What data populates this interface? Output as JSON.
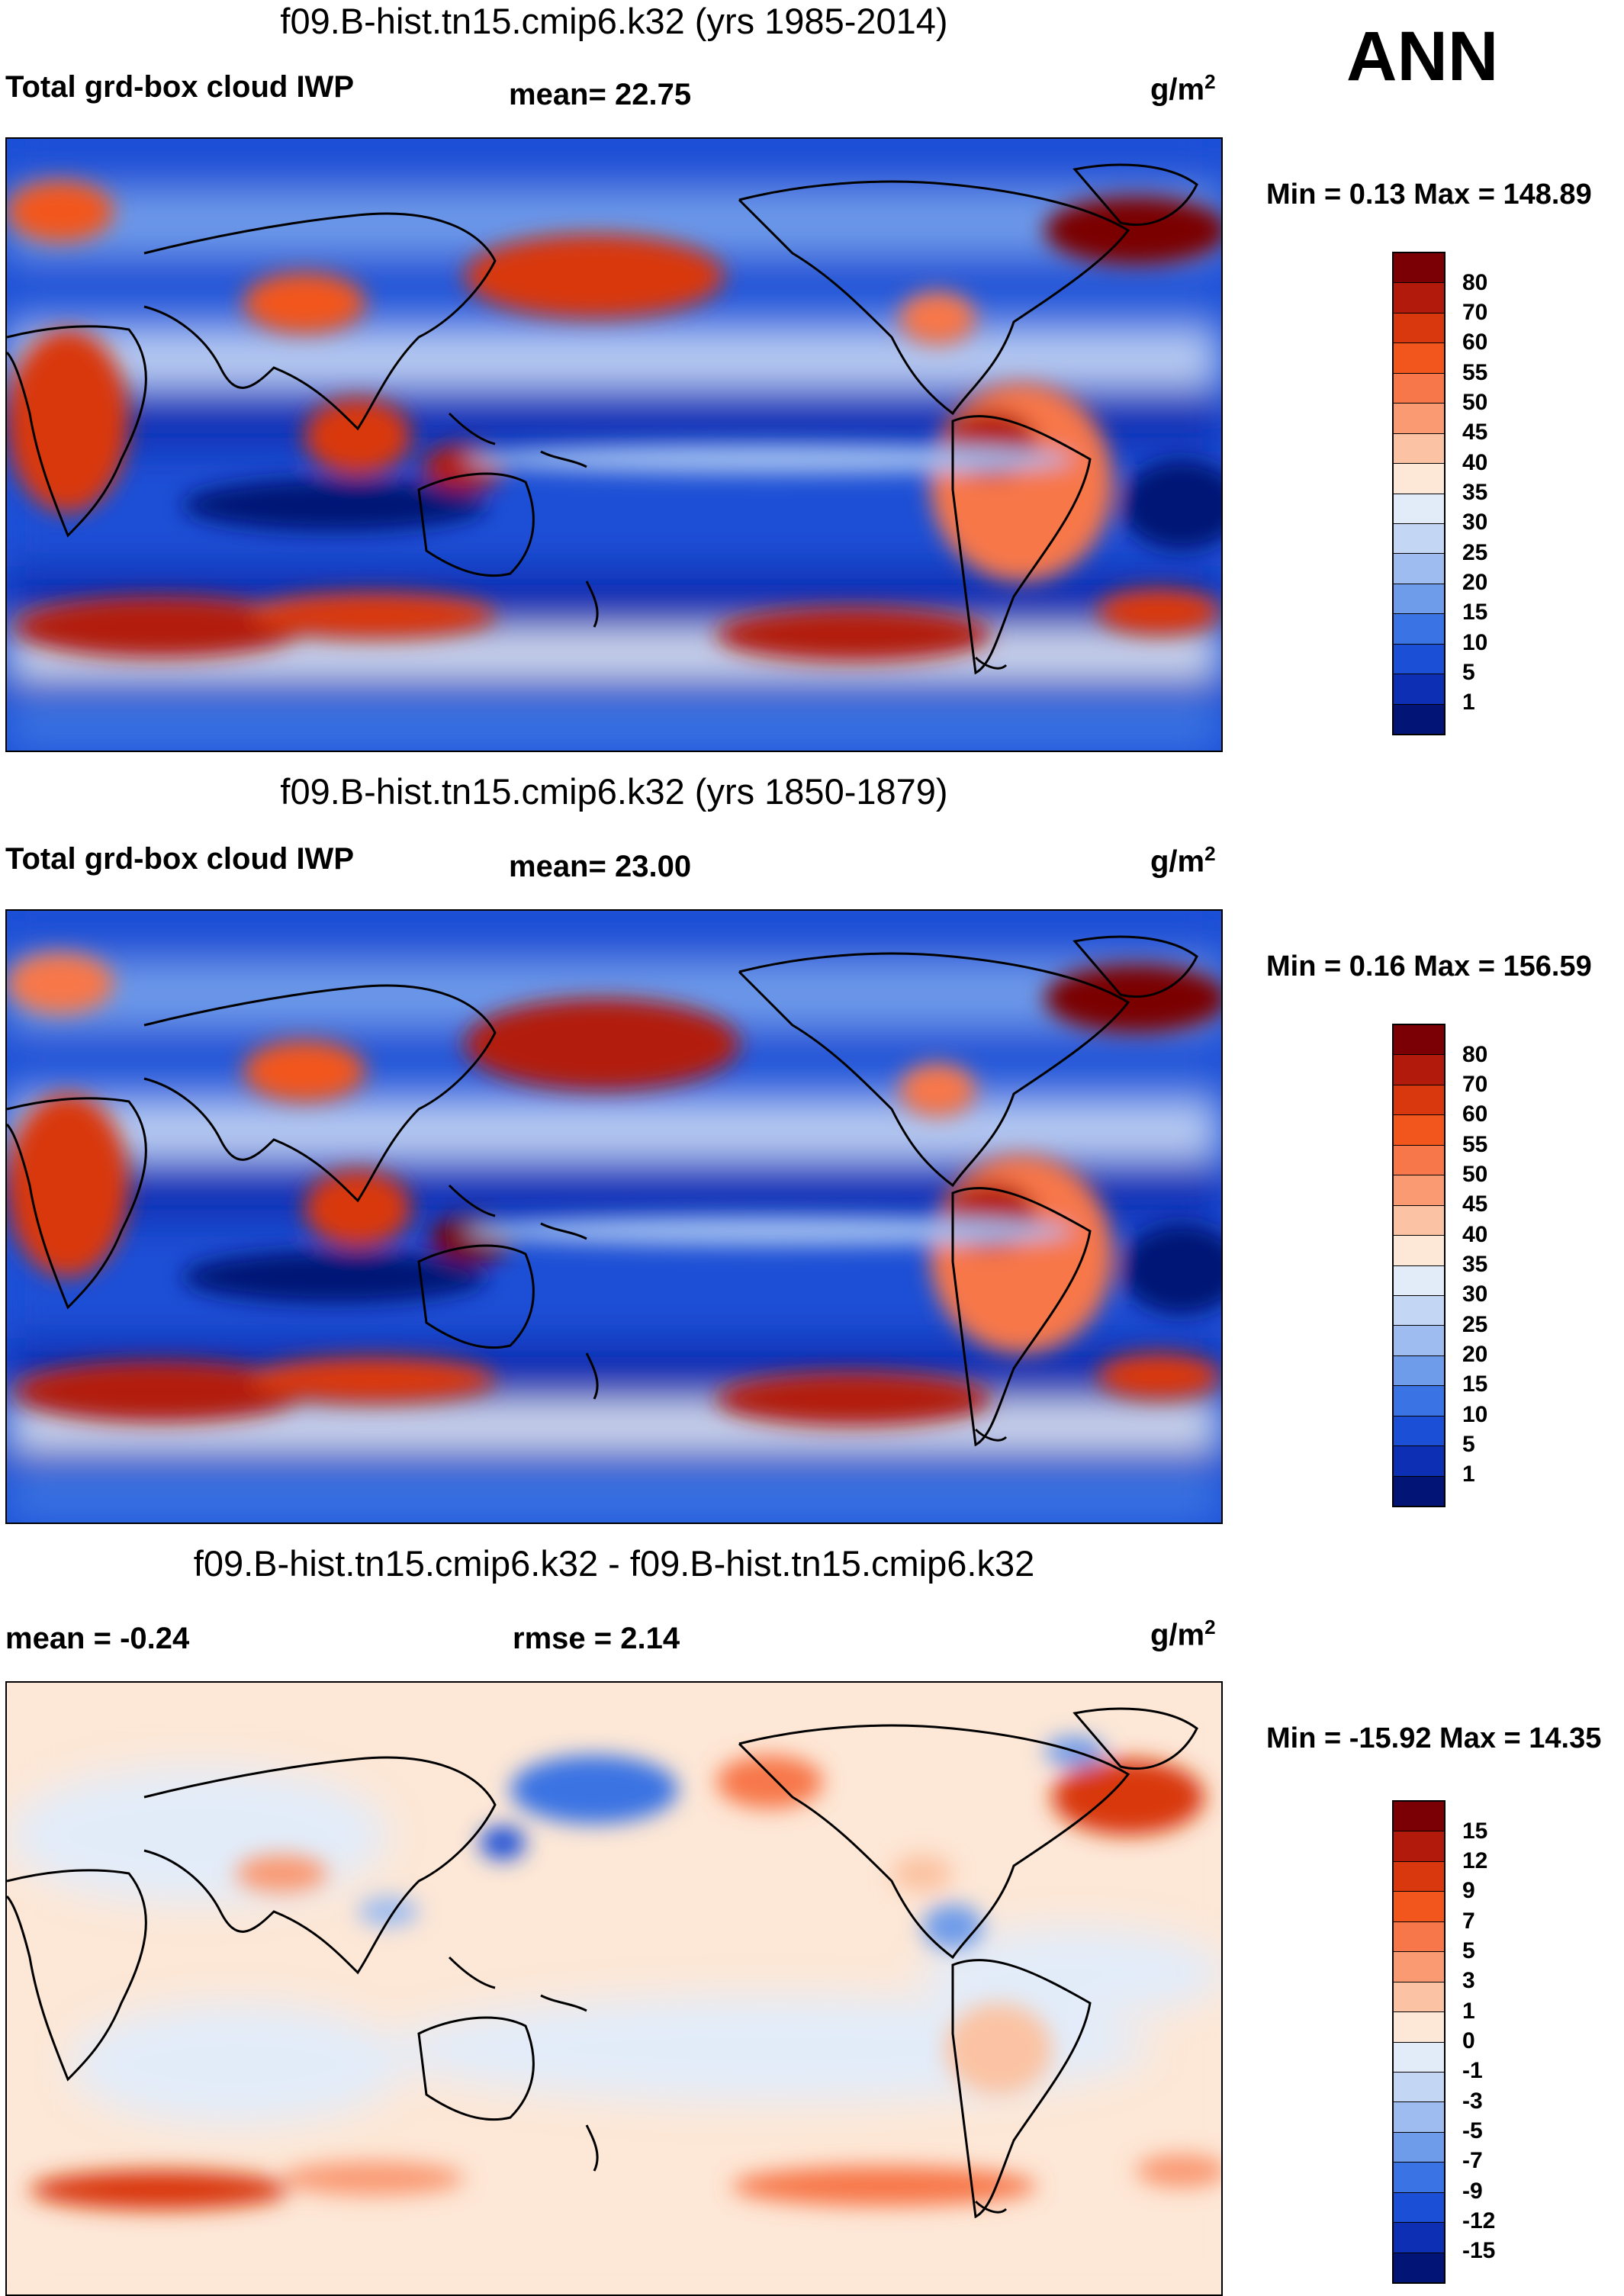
{
  "season": "ANN",
  "units_base": "g/m",
  "units_exp": "2",
  "panels": [
    {
      "title": "f09.B-hist.tn15.cmip6.k32 (yrs 1985-2014)",
      "left_label": "Total grd-box cloud IWP",
      "stat_label": "mean=  22.75",
      "minmax": "Min =   0.13 Max = 148.89"
    },
    {
      "title": "f09.B-hist.tn15.cmip6.k32 (yrs 1850-1879)",
      "left_label": "Total grd-box cloud IWP",
      "stat_label": "mean=  23.00",
      "minmax": "Min =   0.16 Max = 156.59"
    },
    {
      "title": "f09.B-hist.tn15.cmip6.k32 - f09.B-hist.tn15.cmip6.k32",
      "left_label": "mean =  -0.24",
      "stat_label": "rmse =   2.14",
      "minmax": "Min = -15.92 Max =  14.35"
    }
  ],
  "levels_abs": [
    "80",
    "70",
    "60",
    "55",
    "50",
    "45",
    "40",
    "35",
    "30",
    "25",
    "20",
    "15",
    "10",
    "5",
    "1"
  ],
  "levels_diff": [
    "15",
    "12",
    "9",
    "7",
    "5",
    "3",
    "1",
    "0",
    "-1",
    "-3",
    "-5",
    "-7",
    "-9",
    "-12",
    "-15"
  ],
  "colors_abs": [
    "#7a0006",
    "#b21a0b",
    "#d9380f",
    "#f2561d",
    "#f7774a",
    "#f99a73",
    "#fbc3a3",
    "#fde7d6",
    "#e2ecf9",
    "#c3d6f4",
    "#9ebcf0",
    "#6e9bea",
    "#3a73e3",
    "#1a4fd6",
    "#0c2fb4",
    "#021476"
  ],
  "colors_diff": [
    "#7a0006",
    "#b21a0b",
    "#d9380f",
    "#f2561d",
    "#f7774a",
    "#f99a73",
    "#fbc3a3",
    "#fde7d6",
    "#e2ecf9",
    "#c3d6f4",
    "#9ebcf0",
    "#6e9bea",
    "#3a73e3",
    "#1a4fd6",
    "#0c2fb4",
    "#021476"
  ]
}
